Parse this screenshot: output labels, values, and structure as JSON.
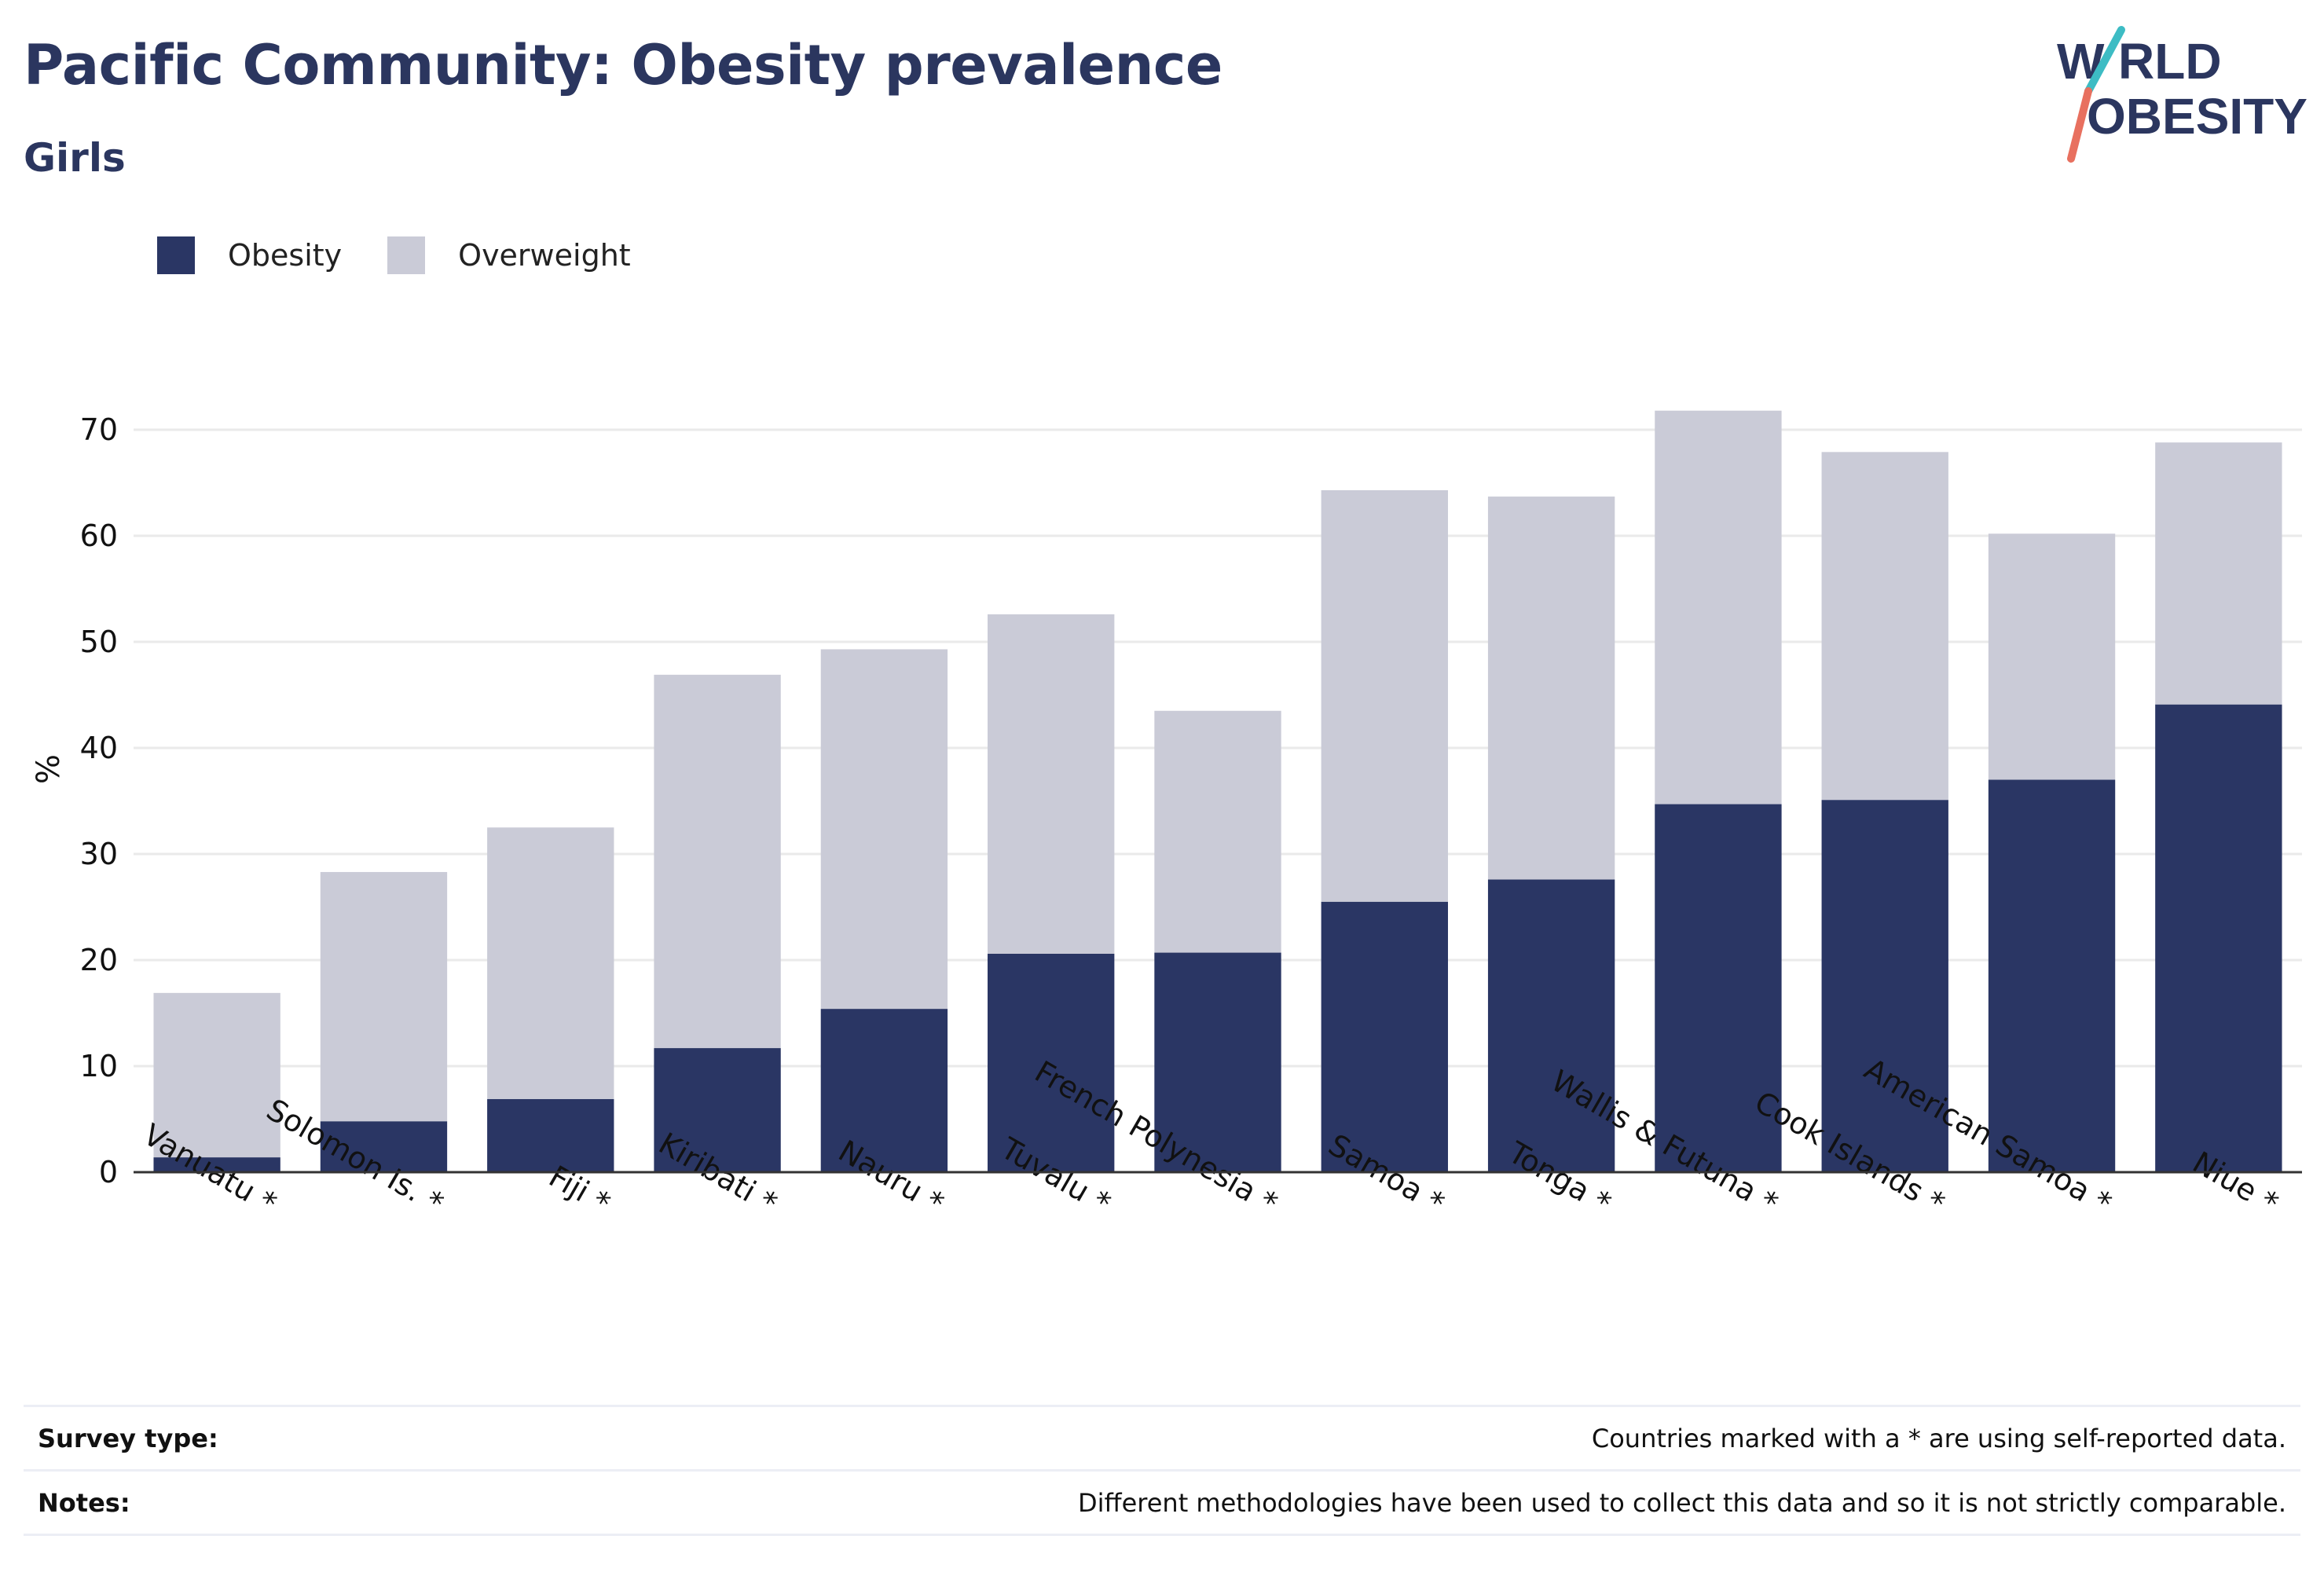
{
  "header": {
    "title": "Pacific Community: Obesity prevalence",
    "subtitle": "Girls"
  },
  "logo": {
    "line1": "WORLD",
    "line2": "OBESITY"
  },
  "colors": {
    "obesity": "#2a3664",
    "overweight": "#cacbd7",
    "logo_teal": "#3dbcc4",
    "logo_coral": "#e8705f"
  },
  "chart_data": {
    "type": "bar",
    "stacked": true,
    "categories": [
      "Vanuatu *",
      "Solomon Is. *",
      "Fiji *",
      "Kiribati *",
      "Nauru *",
      "Tuvalu *",
      "French Polynesia *",
      "Samoa *",
      "Tonga *",
      "Wallis & Futuna *",
      "Cook Islands *",
      "American Samoa *",
      "Niue *"
    ],
    "series": [
      {
        "name": "Obesity",
        "values": [
          1.4,
          4.8,
          6.9,
          11.7,
          15.4,
          20.6,
          20.7,
          25.5,
          27.6,
          34.7,
          35.1,
          37.0,
          44.1
        ]
      },
      {
        "name": "Overweight",
        "values": [
          15.5,
          23.5,
          25.6,
          35.2,
          33.9,
          32.0,
          22.8,
          38.8,
          36.1,
          37.1,
          32.8,
          23.2,
          24.7
        ]
      }
    ],
    "ylabel": "%",
    "ylim": [
      0,
      75
    ],
    "yticks": [
      0,
      10,
      20,
      30,
      40,
      50,
      60,
      70
    ],
    "grid": true,
    "legend": "top-left"
  },
  "footer": {
    "survey_label": "Survey type:",
    "survey_text": "Countries marked with a * are using self-reported data.",
    "notes_label": "Notes:",
    "notes_text": "Different methodologies have been used to collect this data and so it is not strictly comparable."
  }
}
